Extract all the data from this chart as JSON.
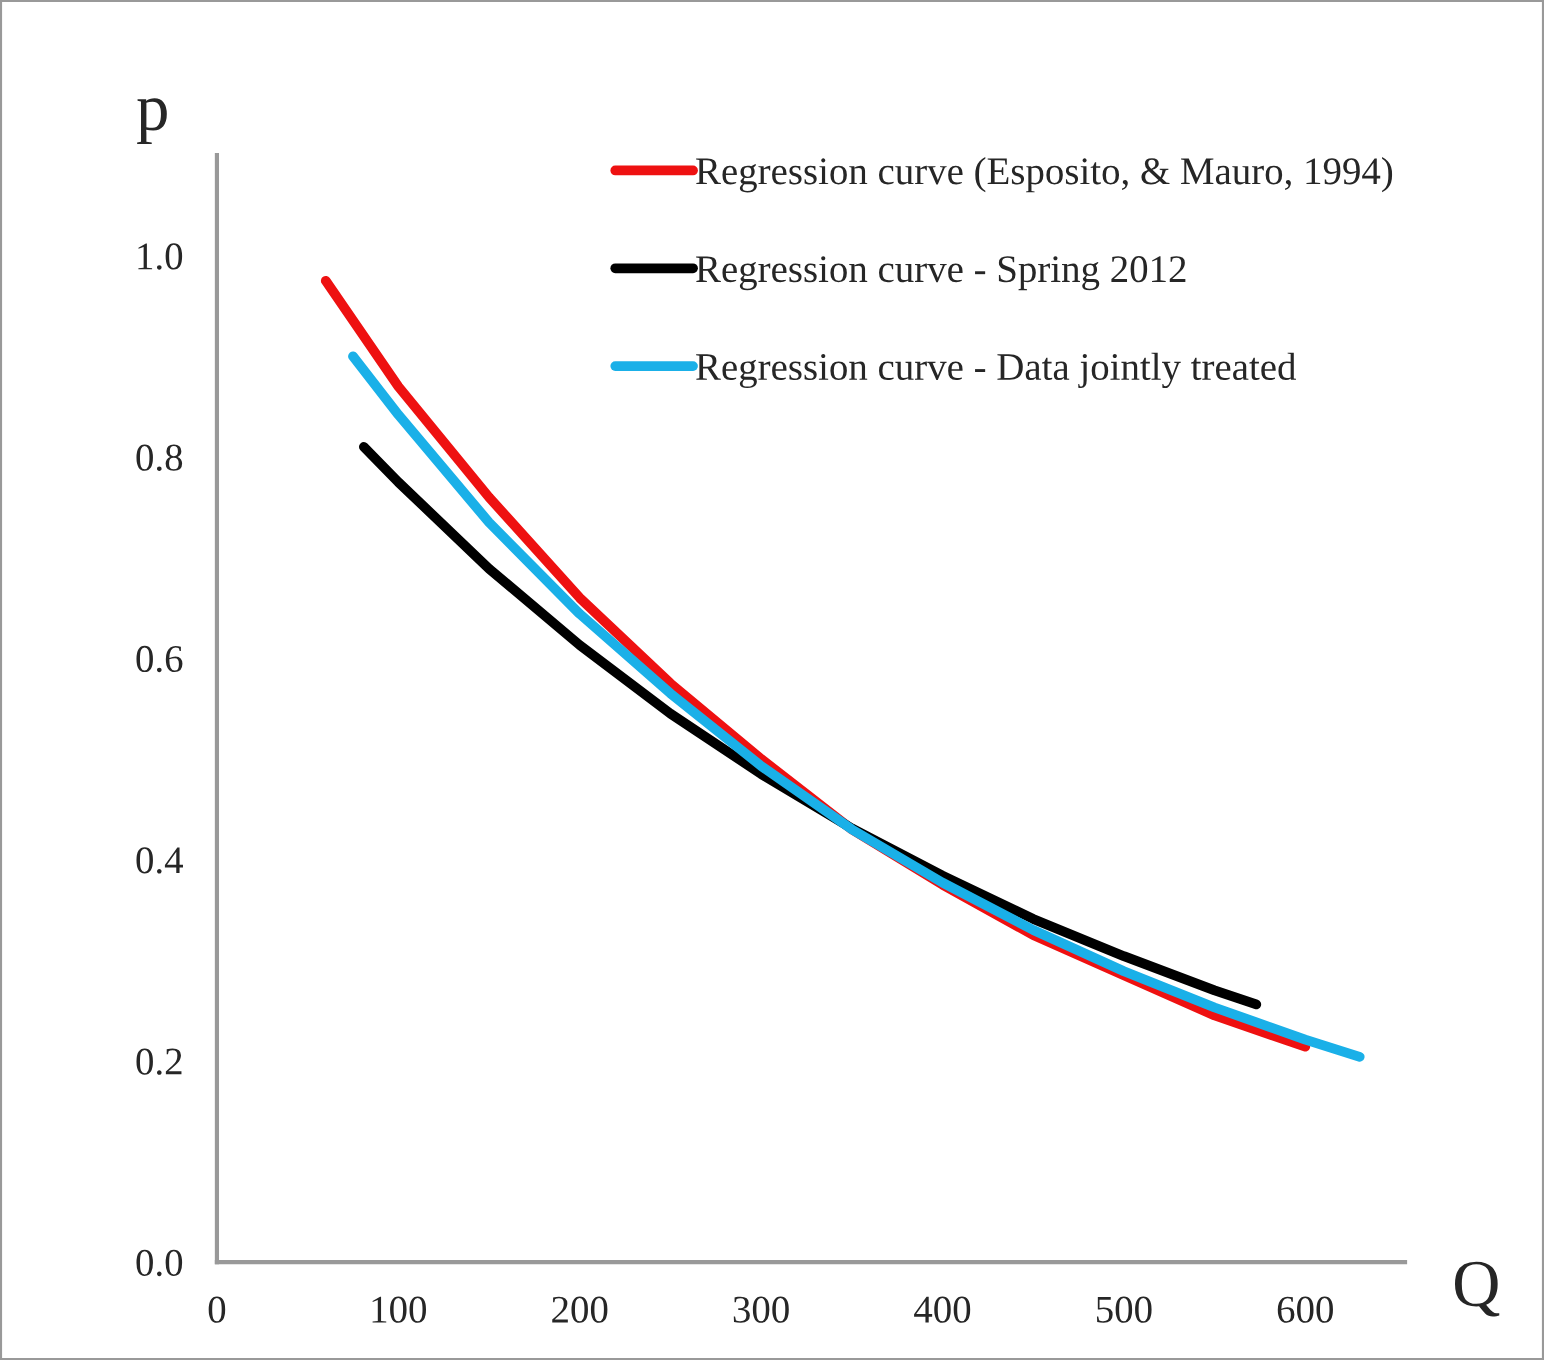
{
  "chart_data": {
    "type": "line",
    "xlabel": "Q",
    "ylabel": "p",
    "series": [
      {
        "name": "Regression curve (Esposito, & Mauro, 1994)",
        "color": "#ee1111",
        "x": [
          60,
          100,
          150,
          200,
          250,
          300,
          350,
          400,
          450,
          500,
          550,
          600
        ],
        "values": [
          0.975,
          0.87,
          0.76,
          0.66,
          0.575,
          0.5,
          0.43,
          0.375,
          0.325,
          0.285,
          0.245,
          0.214
        ]
      },
      {
        "name": "Regression curve - Spring 2012",
        "color": "#000000",
        "x": [
          81,
          100,
          150,
          200,
          250,
          300,
          350,
          400,
          450,
          500,
          550,
          573
        ],
        "values": [
          0.81,
          0.775,
          0.689,
          0.613,
          0.545,
          0.485,
          0.431,
          0.384,
          0.341,
          0.304,
          0.27,
          0.256
        ]
      },
      {
        "name": "Regression curve - Data jointly treated",
        "color": "#1ab0e8",
        "x": [
          75,
          100,
          150,
          200,
          250,
          300,
          350,
          400,
          450,
          500,
          550,
          600,
          630
        ],
        "values": [
          0.9,
          0.842,
          0.735,
          0.644,
          0.565,
          0.493,
          0.43,
          0.377,
          0.33,
          0.289,
          0.253,
          0.221,
          0.204
        ]
      }
    ],
    "xlim": [
      0,
      655
    ],
    "xticks": [
      0,
      100,
      200,
      300,
      400,
      500,
      600
    ],
    "ylim": [
      0,
      1.1
    ],
    "yticks": [
      {
        "value": 0,
        "label": "0.0"
      },
      {
        "value": 0.2,
        "label": "0.2"
      },
      {
        "value": 0.4,
        "label": "0.4"
      },
      {
        "value": 0.6,
        "label": "0.6"
      },
      {
        "value": 0.8,
        "label": "0.8"
      },
      {
        "value": 1.0,
        "label": "1.0"
      }
    ],
    "grid": false,
    "legend": "top right",
    "marker": "none",
    "line_style": "solid"
  }
}
